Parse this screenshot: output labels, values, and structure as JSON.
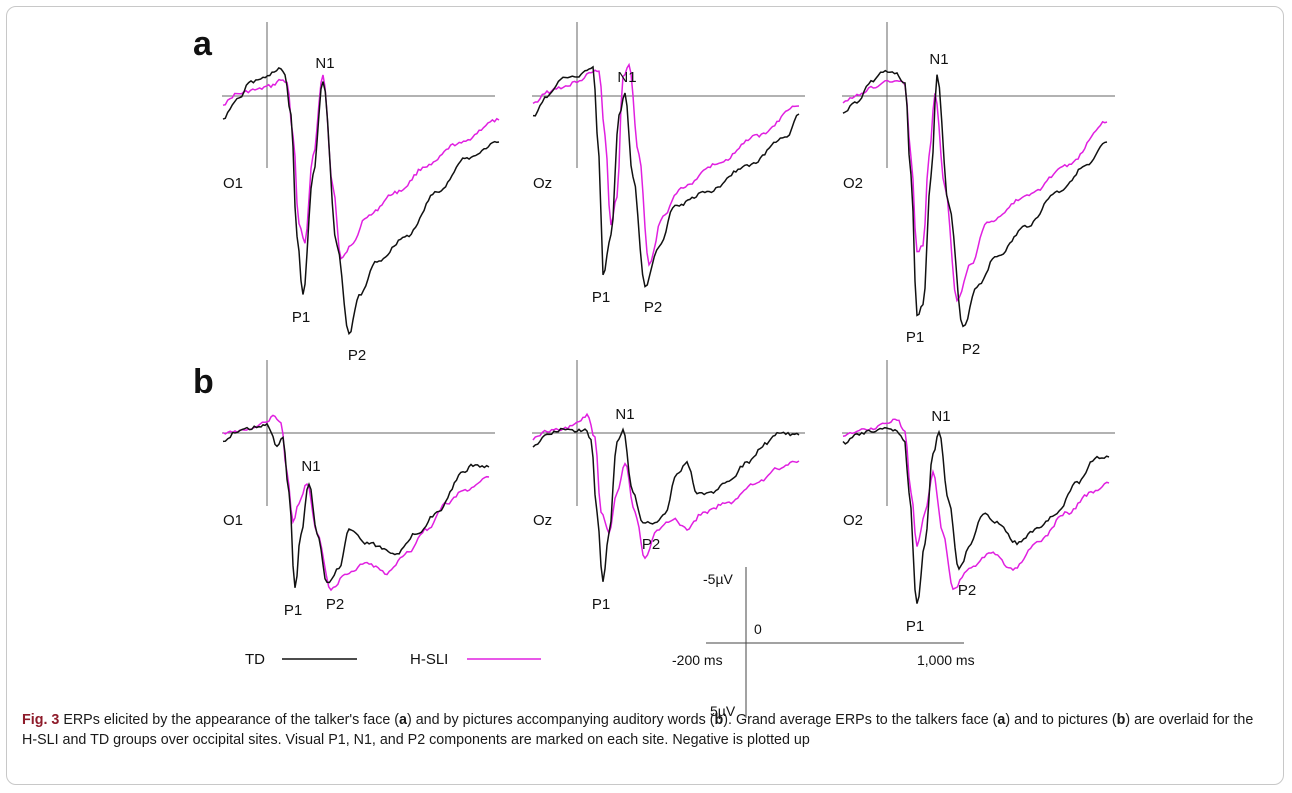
{
  "panels": [
    {
      "letter": "a",
      "sites": [
        {
          "site": "O1",
          "peaks": {
            "N1": "N1",
            "P1": "P1",
            "P2": "P2"
          }
        },
        {
          "site": "Oz",
          "peaks": {
            "N1": "N1",
            "P1": "P1",
            "P2": "P2"
          }
        },
        {
          "site": "O2",
          "peaks": {
            "N1": "N1",
            "P1": "P1",
            "P2": "P2"
          }
        }
      ]
    },
    {
      "letter": "b",
      "sites": [
        {
          "site": "O1",
          "peaks": {
            "N1": "N1",
            "P1": "P1",
            "P2": "P2"
          }
        },
        {
          "site": "Oz",
          "peaks": {
            "N1": "N1",
            "P1": "P1",
            "P2": "P2"
          }
        },
        {
          "site": "O2",
          "peaks": {
            "N1": "N1",
            "P1": "P1",
            "P2": "P2"
          }
        }
      ]
    }
  ],
  "legend": [
    {
      "label": "TD",
      "color": "#111111"
    },
    {
      "label": "H-SLI",
      "color": "#e020e0"
    }
  ],
  "scale": {
    "top": "-5µV",
    "bottom": "5µV",
    "zero": "0",
    "left": "-200 ms",
    "right": "1,000 ms"
  },
  "caption": {
    "fignum": "Fig. 3",
    "parts": [
      " ERPs elicited by the appearance of the talker's face (",
      "a",
      ") and by pictures accompanying auditory words (",
      "b",
      "). Grand average ERPs to the talkers face (",
      "a",
      ") and to pictures (",
      "b",
      ") are overlaid for the H-SLI and TD groups over occipital sites. Visual P1, N1, and P2 components are marked on each site. Negative is plotted up"
    ]
  },
  "chart_data": {
    "type": "line",
    "xlabel": "",
    "ylabel": "",
    "x_range_ms": [
      -200,
      1000
    ],
    "y_range_uV": [
      -5,
      5
    ],
    "negative_up": true,
    "series": [
      {
        "name": "TD"
      },
      {
        "name": "H-SLI"
      }
    ],
    "panels": [
      "a",
      "b"
    ],
    "sites": [
      "O1",
      "Oz",
      "O2"
    ],
    "components": [
      "P1",
      "N1",
      "P2"
    ]
  }
}
